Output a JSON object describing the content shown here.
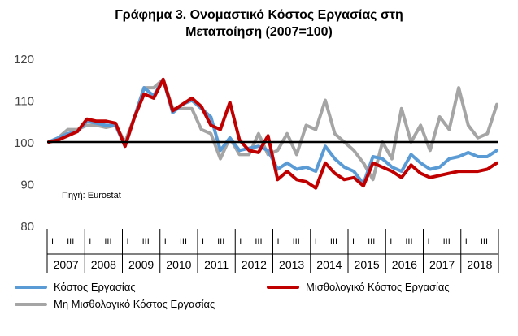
{
  "chart_data": {
    "type": "line",
    "title_line1": "Γράφημα 3. Ονομαστικό Κόστος Εργασίας στη",
    "title_line2": "Μεταποίηση (2007=100)",
    "source": "Πηγή: Eurostat",
    "ylim": [
      80,
      120
    ],
    "yticks": [
      80,
      90,
      100,
      110,
      120
    ],
    "baseline": 100,
    "years": [
      "2007",
      "2008",
      "2009",
      "2010",
      "2011",
      "2012",
      "2013",
      "2014",
      "2015",
      "2016",
      "2017",
      "2018"
    ],
    "quarter_labels": [
      "I",
      "III"
    ],
    "x": [
      "2007Q1",
      "2007Q2",
      "2007Q3",
      "2007Q4",
      "2008Q1",
      "2008Q2",
      "2008Q3",
      "2008Q4",
      "2009Q1",
      "2009Q2",
      "2009Q3",
      "2009Q4",
      "2010Q1",
      "2010Q2",
      "2010Q3",
      "2010Q4",
      "2011Q1",
      "2011Q2",
      "2011Q3",
      "2011Q4",
      "2012Q1",
      "2012Q2",
      "2012Q3",
      "2012Q4",
      "2013Q1",
      "2013Q2",
      "2013Q3",
      "2013Q4",
      "2014Q1",
      "2014Q2",
      "2014Q3",
      "2014Q4",
      "2015Q1",
      "2015Q2",
      "2015Q3",
      "2015Q4",
      "2016Q1",
      "2016Q2",
      "2016Q3",
      "2016Q4",
      "2017Q1",
      "2017Q2",
      "2017Q3",
      "2017Q4",
      "2018Q1",
      "2018Q2",
      "2018Q3",
      "2018Q4"
    ],
    "series": [
      {
        "name": "Κόστος Εργασίας",
        "color": "#5b9bd5",
        "values": [
          100,
          101,
          102,
          102.5,
          105,
          104.5,
          104,
          104,
          99,
          106,
          113,
          111,
          115,
          107,
          109,
          110,
          108,
          106,
          98,
          101,
          98,
          98.5,
          99,
          98,
          93.5,
          95,
          93.5,
          94,
          93,
          99,
          96,
          94,
          93,
          90,
          96.5,
          96,
          94,
          93,
          97,
          95,
          93.5,
          94,
          96,
          96.5,
          97.5,
          96.5,
          96.5,
          98
        ]
      },
      {
        "name": "Μισθολογικό Κόστος Εργασίας",
        "color": "#c00000",
        "values": [
          100,
          100.5,
          101.5,
          102.5,
          105.5,
          105,
          105,
          104.5,
          99,
          106,
          111.5,
          110.5,
          115,
          107.5,
          109,
          110.5,
          108.5,
          104,
          103,
          109.5,
          100.5,
          98,
          97.5,
          101.5,
          91,
          93,
          91,
          90.5,
          89,
          95,
          92.5,
          91,
          91.5,
          89.5,
          95,
          94,
          93,
          91.5,
          94.5,
          92.5,
          91.5,
          92,
          92.5,
          93,
          93,
          93,
          93.5,
          95
        ]
      },
      {
        "name": "Μη Μισθολογικό Κόστος Εργασίας",
        "color": "#a5a5a5",
        "values": [
          100,
          101,
          103,
          103,
          104,
          104,
          103.5,
          104,
          100,
          106,
          113,
          113,
          115,
          108,
          108,
          108,
          103,
          102,
          96,
          101,
          97,
          97,
          102,
          97,
          98,
          102,
          97,
          104,
          103,
          110,
          102,
          100,
          98,
          95,
          91,
          100,
          96,
          108,
          100,
          104,
          98,
          106,
          103,
          113,
          104,
          101,
          102,
          109
        ]
      }
    ]
  }
}
